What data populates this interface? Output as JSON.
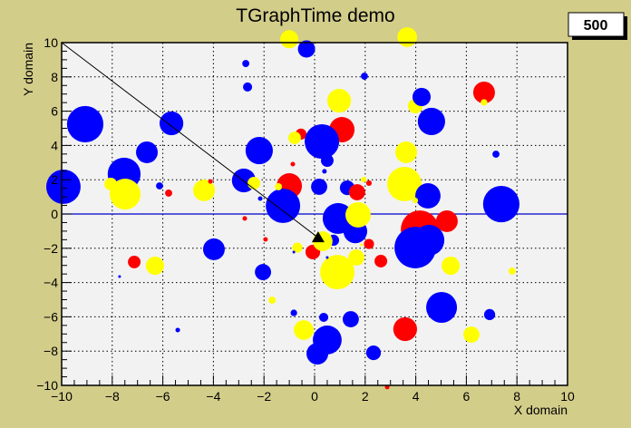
{
  "chart_data": {
    "type": "scatter",
    "title": "TGraphTime demo",
    "xlabel": "X domain",
    "ylabel": "Y domain",
    "xlim": [
      -10,
      10
    ],
    "ylim": [
      -10,
      10
    ],
    "xticks": [
      "−10",
      "−8",
      "−6",
      "−4",
      "−2",
      "0",
      "2",
      "4",
      "6",
      "8",
      "10"
    ],
    "yticks": [
      "−10",
      "−8",
      "−6",
      "−4",
      "−2",
      "0",
      "2",
      "4",
      "6",
      "8",
      "10"
    ],
    "grid": true,
    "time_step_label": "500",
    "colors": {
      "canvas": "#d3cd8a",
      "plot": "#f2f2f2",
      "B": "#0000ff",
      "R": "#ff0000",
      "Y": "#ffff00",
      "hline": "#0000cc"
    },
    "hline_y": 0,
    "arrow": {
      "from": [
        -10,
        10
      ],
      "to": [
        0.14,
        -1.38
      ],
      "marker": "triangle"
    },
    "points_note_fields": [
      "color",
      "x",
      "y",
      "size"
    ],
    "points": [
      [
        "Y",
        -1.0,
        10.2,
        0.36
      ],
      [
        "B",
        -0.32,
        9.63,
        0.34
      ],
      [
        "B",
        -2.72,
        8.78,
        0.14
      ],
      [
        "B",
        -2.65,
        7.41,
        0.18
      ],
      [
        "B",
        -9.07,
        5.24,
        0.72
      ],
      [
        "B",
        -5.66,
        5.29,
        0.47
      ],
      [
        "R",
        -0.54,
        4.66,
        0.22
      ],
      [
        "Y",
        -0.79,
        4.44,
        0.25
      ],
      [
        "B",
        0.29,
        4.23,
        0.68
      ],
      [
        "B",
        -6.63,
        3.6,
        0.43
      ],
      [
        "B",
        -2.19,
        3.7,
        0.54
      ],
      [
        "R",
        -0.86,
        2.91,
        0.09
      ],
      [
        "B",
        -9.93,
        1.59,
        0.68
      ],
      [
        "B",
        -7.53,
        2.33,
        0.65
      ],
      [
        "Y",
        -7.49,
        1.16,
        0.61
      ],
      [
        "Y",
        -8.06,
        1.75,
        0.25
      ],
      [
        "B",
        -6.13,
        1.64,
        0.14
      ],
      [
        "R",
        -5.77,
        1.22,
        0.14
      ],
      [
        "Y",
        -4.37,
        1.38,
        0.43
      ],
      [
        "R",
        -4.12,
        1.9,
        0.09
      ],
      [
        "B",
        -2.8,
        1.96,
        0.47
      ],
      [
        "Y",
        -2.4,
        1.8,
        0.25
      ],
      [
        "B",
        -2.15,
        0.9,
        0.09
      ],
      [
        "R",
        -1.0,
        1.64,
        0.5
      ],
      [
        "B",
        -1.25,
        0.48,
        0.68
      ],
      [
        "Y",
        -1.43,
        1.59,
        0.14
      ],
      [
        "B",
        0.18,
        1.59,
        0.32
      ],
      [
        "B",
        0.39,
        2.49,
        0.09
      ],
      [
        "B",
        0.5,
        3.12,
        0.25
      ],
      [
        "R",
        -2.76,
        -0.26,
        0.09
      ],
      [
        "Y",
        3.66,
        10.32,
        0.39
      ],
      [
        "B",
        1.97,
        8.04,
        0.14
      ],
      [
        "Y",
        0.97,
        6.61,
        0.47
      ],
      [
        "R",
        6.7,
        7.09,
        0.43
      ],
      [
        "Y",
        6.7,
        6.51,
        0.13
      ],
      [
        "Y",
        3.98,
        6.3,
        0.29
      ],
      [
        "B",
        4.23,
        6.83,
        0.36
      ],
      [
        "B",
        4.62,
        5.4,
        0.54
      ],
      [
        "R",
        1.08,
        4.92,
        0.5
      ],
      [
        "B",
        0.29,
        4.23,
        0.68
      ],
      [
        "Y",
        3.62,
        3.6,
        0.43
      ],
      [
        "B",
        7.17,
        3.49,
        0.14
      ],
      [
        "B",
        1.29,
        1.53,
        0.29
      ],
      [
        "R",
        1.68,
        1.27,
        0.32
      ],
      [
        "Y",
        1.94,
        2.01,
        0.11
      ],
      [
        "R",
        2.15,
        1.8,
        0.11
      ],
      [
        "Y",
        3.55,
        1.75,
        0.68
      ],
      [
        "B",
        4.48,
        1.06,
        0.5
      ],
      [
        "Y",
        3.98,
        0.79,
        0.11
      ],
      [
        "B",
        7.38,
        0.58,
        0.72
      ],
      [
        "R",
        5.23,
        -0.42,
        0.43
      ],
      [
        "R",
        4.16,
        -0.9,
        0.75
      ],
      [
        "B",
        3.98,
        -1.96,
        0.82
      ],
      [
        "B",
        4.52,
        -1.53,
        0.61
      ],
      [
        "B",
        0.93,
        -0.26,
        0.61
      ],
      [
        "B",
        1.61,
        -1.01,
        0.47
      ],
      [
        "Y",
        1.72,
        -0.05,
        0.5
      ],
      [
        "R",
        -1.94,
        -1.48,
        0.09
      ],
      [
        "Y",
        -0.68,
        -1.96,
        0.2
      ],
      [
        "R",
        -0.07,
        -2.22,
        0.29
      ],
      [
        "B",
        -0.82,
        -2.22,
        0.05
      ],
      [
        "B",
        0.75,
        -1.53,
        0.22
      ],
      [
        "Y",
        0.32,
        -1.59,
        0.39
      ],
      [
        "B",
        -3.98,
        -2.06,
        0.43
      ],
      [
        "R",
        -7.13,
        -2.8,
        0.25
      ],
      [
        "Y",
        -6.31,
        -3.02,
        0.36
      ],
      [
        "B",
        -7.71,
        -3.65,
        0.05
      ],
      [
        "B",
        -2.04,
        -3.39,
        0.32
      ],
      [
        "Y",
        0.9,
        -3.39,
        0.68
      ],
      [
        "B",
        0.5,
        -2.54,
        0.05
      ],
      [
        "Y",
        1.65,
        -2.54,
        0.32
      ],
      [
        "R",
        2.15,
        -1.75,
        0.2
      ],
      [
        "Y",
        1.86,
        -1.8,
        0.05
      ],
      [
        "R",
        2.62,
        -2.75,
        0.25
      ],
      [
        "Y",
        5.38,
        -3.02,
        0.36
      ],
      [
        "Y",
        7.81,
        -3.33,
        0.14
      ],
      [
        "Y",
        -1.68,
        -5.03,
        0.14
      ],
      [
        "B",
        -0.82,
        -5.77,
        0.13
      ],
      [
        "B",
        0.36,
        -6.03,
        0.18
      ],
      [
        "B",
        -5.41,
        -6.77,
        0.09
      ],
      [
        "Y",
        -0.43,
        -6.77,
        0.39
      ],
      [
        "B",
        0.5,
        -7.35,
        0.57
      ],
      [
        "B",
        0.11,
        -8.15,
        0.43
      ],
      [
        "B",
        5.02,
        -5.45,
        0.61
      ],
      [
        "B",
        6.92,
        -5.87,
        0.22
      ],
      [
        "B",
        1.43,
        -6.14,
        0.32
      ],
      [
        "R",
        3.58,
        -6.72,
        0.47
      ],
      [
        "Y",
        6.2,
        -7.04,
        0.32
      ],
      [
        "B",
        2.33,
        -8.1,
        0.29
      ],
      [
        "R",
        2.87,
        -10.1,
        0.09
      ]
    ]
  }
}
